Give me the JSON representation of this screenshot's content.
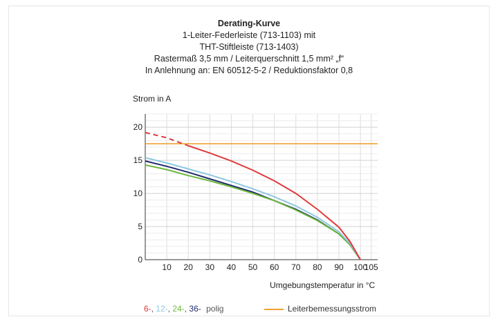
{
  "chart_data": {
    "type": "line",
    "title_lines": [
      "Derating-Kurve",
      "1-Leiter-Federleiste (713-1103) mit",
      "THT-Stiftleiste (713-1403)",
      "Rastermaß 3,5 mm / Leiterquerschnitt 1,5 mm² „f“",
      "In Anlehnung an: EN 60512-5-2 / Reduktionsfaktor 0,8"
    ],
    "ylabel": "Strom in A",
    "xlabel": "Umgebungstemperatur in °C",
    "xlim": [
      0,
      108
    ],
    "ylim": [
      0,
      22
    ],
    "xticks": [
      10,
      20,
      30,
      40,
      50,
      60,
      70,
      80,
      90,
      100,
      105
    ],
    "yticks": [
      0,
      5,
      10,
      15,
      20
    ],
    "grid": true,
    "series": [
      {
        "name": "6-",
        "color": "#e03a3a",
        "dashed_until_x": 20,
        "x": [
          0,
          10,
          20,
          30,
          40,
          50,
          60,
          70,
          80,
          90,
          95,
          100
        ],
        "y": [
          19.2,
          18.4,
          17.2,
          16.1,
          14.9,
          13.5,
          11.9,
          10.0,
          7.6,
          4.9,
          2.8,
          0
        ]
      },
      {
        "name": "12-",
        "color": "#8ec8e0",
        "x": [
          0,
          10,
          20,
          30,
          40,
          50,
          60,
          70,
          80,
          90,
          95,
          100
        ],
        "y": [
          15.4,
          14.6,
          13.7,
          12.8,
          11.8,
          10.7,
          9.5,
          8.1,
          6.4,
          4.2,
          2.5,
          0
        ]
      },
      {
        "name": "24-",
        "color": "#6cb83a",
        "x": [
          0,
          10,
          20,
          30,
          40,
          50,
          60,
          70,
          80,
          90,
          95,
          100
        ],
        "y": [
          14.3,
          13.6,
          12.7,
          11.9,
          11.0,
          10.0,
          8.9,
          7.5,
          5.9,
          3.9,
          2.3,
          0
        ]
      },
      {
        "name": "36-",
        "color": "#1f2a6e",
        "x": [
          0,
          10,
          20,
          30,
          40,
          50,
          60,
          70,
          80,
          90,
          95,
          100
        ],
        "y": [
          14.9,
          14.1,
          13.2,
          12.2,
          11.2,
          10.2,
          8.9,
          7.6,
          6.0,
          3.9,
          2.3,
          0
        ]
      }
    ],
    "reference_line": {
      "name": "Leiterbemessungsstrom",
      "y": 17.5,
      "color": "#f0a030"
    },
    "legend": {
      "series_labels": [
        "6-",
        "12-",
        "24-",
        "36-"
      ],
      "suffix": "polig",
      "separator": ",",
      "reference_label": "Leiterbemessungsstrom"
    }
  }
}
